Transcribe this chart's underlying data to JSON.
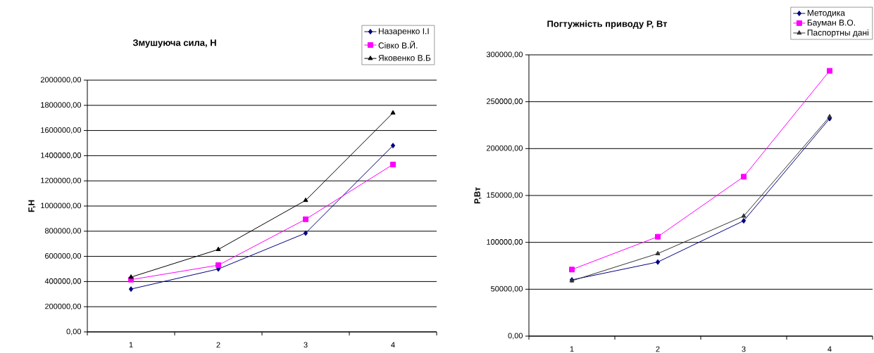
{
  "chart_data": [
    {
      "type": "line",
      "title": "Змушуюча сила, Н",
      "ylabel": "F,Н",
      "categories": [
        "1",
        "2",
        "3",
        "4"
      ],
      "series": [
        {
          "name": "Назаренко І.І",
          "color": "#000080",
          "marker": "diamond",
          "values": [
            340000,
            500000,
            785000,
            1480000
          ]
        },
        {
          "name": "Сівко В.Й.",
          "color": "#ff00ff",
          "marker": "square",
          "values": [
            415000,
            530000,
            895000,
            1330000
          ]
        },
        {
          "name": "Яковенко В.Б",
          "color": "#000000",
          "marker": "triangle",
          "values": [
            435000,
            655000,
            1045000,
            1740000
          ]
        }
      ],
      "ylim": [
        0,
        2000000
      ],
      "yticks": [
        {
          "value": 0,
          "label": "0,00"
        },
        {
          "value": 200000,
          "label": "200000,00"
        },
        {
          "value": 400000,
          "label": "400000,00"
        },
        {
          "value": 600000,
          "label": "600000,00"
        },
        {
          "value": 800000,
          "label": "800000,00"
        },
        {
          "value": 1000000,
          "label": "1000000,00"
        },
        {
          "value": 1200000,
          "label": "1200000,00"
        },
        {
          "value": 1400000,
          "label": "1400000,00"
        },
        {
          "value": 1600000,
          "label": "1600000,00"
        },
        {
          "value": 1800000,
          "label": "1800000,00"
        },
        {
          "value": 2000000,
          "label": "2000000,00"
        }
      ],
      "grid": "y",
      "legend": "top right"
    },
    {
      "type": "line",
      "title": "Погтужність приводу Р, Вт",
      "ylabel": "Р,Вт",
      "categories": [
        "1",
        "2",
        "3",
        "4"
      ],
      "series": [
        {
          "name": "Методика",
          "color": "#000080",
          "marker": "diamond",
          "values": [
            60000,
            79000,
            123000,
            232000
          ]
        },
        {
          "name": "Бауман В.О.",
          "color": "#ff00ff",
          "marker": "square",
          "values": [
            71000,
            106000,
            170000,
            283000
          ]
        },
        {
          "name": "Паспортны дані",
          "color": "#333333",
          "marker": "triangle",
          "values": [
            59000,
            88000,
            128000,
            234000
          ]
        }
      ],
      "ylim": [
        0,
        300000
      ],
      "yticks": [
        {
          "value": 0,
          "label": "0,00"
        },
        {
          "value": 50000,
          "label": "50000,00"
        },
        {
          "value": 100000,
          "label": "100000,00"
        },
        {
          "value": 150000,
          "label": "150000,00"
        },
        {
          "value": 200000,
          "label": "200000,00"
        },
        {
          "value": 250000,
          "label": "250000,00"
        },
        {
          "value": 300000,
          "label": "300000,00"
        }
      ],
      "grid": "y",
      "legend": "top right"
    }
  ]
}
